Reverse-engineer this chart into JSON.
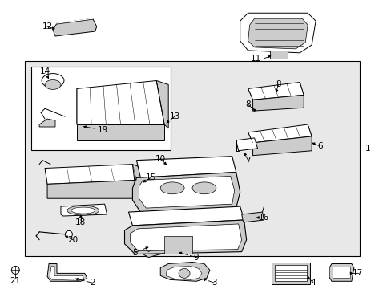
{
  "white": "#ffffff",
  "light_gray": "#e8e8e8",
  "mid_gray": "#cccccc",
  "dark_gray": "#999999",
  "black": "#000000",
  "fig_w": 4.89,
  "fig_h": 3.6,
  "dpi": 100
}
